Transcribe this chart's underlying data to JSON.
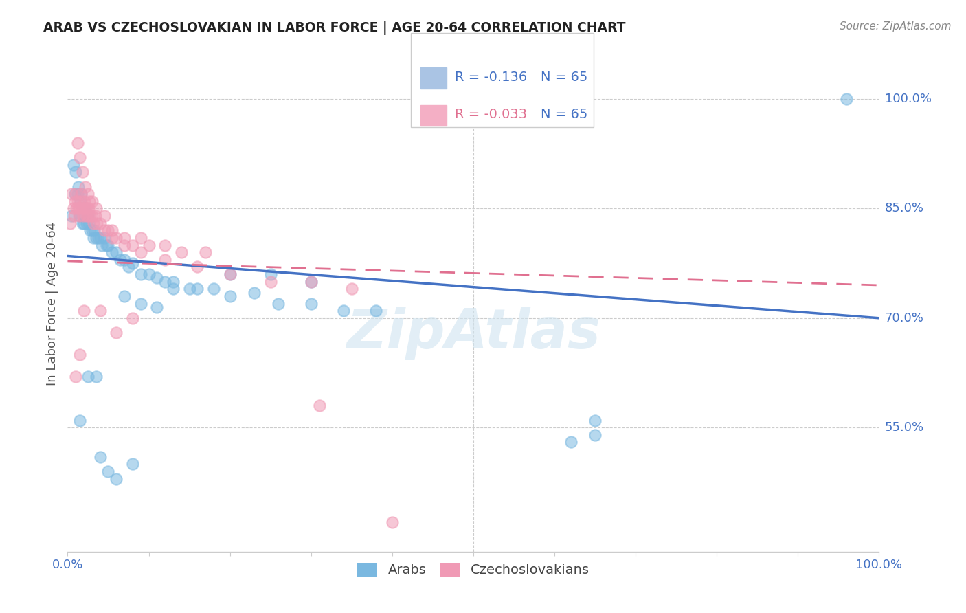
{
  "title": "ARAB VS CZECHOSLOVAKIAN IN LABOR FORCE | AGE 20-64 CORRELATION CHART",
  "source_text": "Source: ZipAtlas.com",
  "ylabel": "In Labor Force | Age 20-64",
  "xlim": [
    0.0,
    1.0
  ],
  "ylim": [
    0.38,
    1.06
  ],
  "yticks_right": [
    0.55,
    0.7,
    0.85,
    1.0
  ],
  "ytick_right_labels": [
    "55.0%",
    "70.0%",
    "85.0%",
    "100.0%"
  ],
  "legend_r_blue": "-0.136",
  "legend_r_pink": "-0.033",
  "legend_n": "65",
  "legend_sq_blue": "#aac4e4",
  "legend_sq_pink": "#f4afc5",
  "arab_color": "#7ab8e0",
  "czech_color": "#f09ab5",
  "trend_blue_color": "#4472c4",
  "trend_pink_color": "#e07090",
  "axis_color": "#4472c4",
  "grid_color": "#cccccc",
  "watermark_color": "#d0e4f0",
  "blue_line_y0": 0.785,
  "blue_line_y1": 0.7,
  "pink_line_y0": 0.778,
  "pink_line_y1": 0.745,
  "arab_x": [
    0.005,
    0.007,
    0.009,
    0.01,
    0.012,
    0.013,
    0.015,
    0.016,
    0.017,
    0.018,
    0.02,
    0.021,
    0.022,
    0.023,
    0.025,
    0.026,
    0.028,
    0.03,
    0.032,
    0.033,
    0.035,
    0.038,
    0.04,
    0.042,
    0.045,
    0.048,
    0.05,
    0.055,
    0.06,
    0.065,
    0.07,
    0.075,
    0.08,
    0.09,
    0.1,
    0.11,
    0.12,
    0.13,
    0.15,
    0.18,
    0.2,
    0.23,
    0.26,
    0.3,
    0.34,
    0.38,
    0.2,
    0.25,
    0.3,
    0.13,
    0.16,
    0.07,
    0.09,
    0.11,
    0.05,
    0.06,
    0.08,
    0.04,
    0.035,
    0.025,
    0.015,
    0.62,
    0.65,
    0.65,
    0.96
  ],
  "arab_y": [
    0.84,
    0.91,
    0.87,
    0.9,
    0.87,
    0.88,
    0.84,
    0.86,
    0.87,
    0.83,
    0.83,
    0.84,
    0.85,
    0.83,
    0.84,
    0.83,
    0.82,
    0.82,
    0.81,
    0.82,
    0.81,
    0.81,
    0.81,
    0.8,
    0.81,
    0.8,
    0.8,
    0.79,
    0.79,
    0.78,
    0.78,
    0.77,
    0.775,
    0.76,
    0.76,
    0.755,
    0.75,
    0.74,
    0.74,
    0.74,
    0.73,
    0.735,
    0.72,
    0.72,
    0.71,
    0.71,
    0.76,
    0.76,
    0.75,
    0.75,
    0.74,
    0.73,
    0.72,
    0.715,
    0.49,
    0.48,
    0.5,
    0.51,
    0.62,
    0.62,
    0.56,
    0.53,
    0.54,
    0.56,
    1.0
  ],
  "czech_x": [
    0.003,
    0.005,
    0.007,
    0.008,
    0.009,
    0.01,
    0.011,
    0.012,
    0.013,
    0.014,
    0.015,
    0.016,
    0.017,
    0.018,
    0.019,
    0.02,
    0.021,
    0.022,
    0.023,
    0.024,
    0.025,
    0.026,
    0.027,
    0.028,
    0.03,
    0.032,
    0.034,
    0.036,
    0.04,
    0.045,
    0.05,
    0.055,
    0.06,
    0.07,
    0.08,
    0.09,
    0.1,
    0.12,
    0.14,
    0.17,
    0.012,
    0.015,
    0.018,
    0.022,
    0.025,
    0.03,
    0.035,
    0.045,
    0.055,
    0.07,
    0.09,
    0.12,
    0.16,
    0.2,
    0.25,
    0.3,
    0.35,
    0.08,
    0.06,
    0.04,
    0.02,
    0.015,
    0.01,
    0.31,
    0.4
  ],
  "czech_y": [
    0.83,
    0.87,
    0.85,
    0.84,
    0.86,
    0.87,
    0.85,
    0.86,
    0.85,
    0.84,
    0.85,
    0.86,
    0.87,
    0.85,
    0.84,
    0.85,
    0.86,
    0.85,
    0.84,
    0.85,
    0.84,
    0.85,
    0.86,
    0.84,
    0.84,
    0.83,
    0.84,
    0.83,
    0.83,
    0.82,
    0.82,
    0.81,
    0.81,
    0.8,
    0.8,
    0.81,
    0.8,
    0.8,
    0.79,
    0.79,
    0.94,
    0.92,
    0.9,
    0.88,
    0.87,
    0.86,
    0.85,
    0.84,
    0.82,
    0.81,
    0.79,
    0.78,
    0.77,
    0.76,
    0.75,
    0.75,
    0.74,
    0.7,
    0.68,
    0.71,
    0.71,
    0.65,
    0.62,
    0.58,
    0.42
  ]
}
